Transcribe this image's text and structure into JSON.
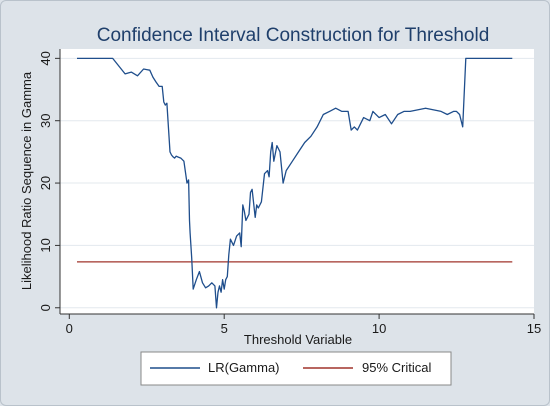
{
  "chart_data": {
    "type": "line",
    "title": "Confidence Interval Construction for Threshold",
    "xlabel": "Threshold Variable",
    "ylabel": "Likelihood Ratio Sequence in Gamma",
    "xlim": [
      -0.3,
      15
    ],
    "ylim": [
      -1,
      41.5
    ],
    "xticks": [
      0,
      5,
      10,
      15
    ],
    "yticks": [
      0,
      10,
      20,
      30,
      40
    ],
    "grid": "horizontal",
    "legend_position": "bottom",
    "colors": {
      "lr": "#1f4e8c",
      "critical": "#a1342b",
      "plot_bg": "#ffffff",
      "page_bg": "#dde3e9",
      "title": "#1f3f6b"
    },
    "series": [
      {
        "name": "LR(Gamma)",
        "x": [
          0.25,
          1.4,
          1.8,
          2.0,
          2.2,
          2.4,
          2.5,
          2.6,
          2.7,
          2.8,
          2.9,
          3.0,
          3.05,
          3.1,
          3.15,
          3.2,
          3.25,
          3.3,
          3.35,
          3.4,
          3.45,
          3.5,
          3.6,
          3.7,
          3.8,
          3.85,
          3.88,
          3.9,
          3.95,
          4.0,
          4.1,
          4.2,
          4.3,
          4.4,
          4.5,
          4.6,
          4.7,
          4.75,
          4.8,
          4.85,
          4.9,
          4.95,
          5.0,
          5.05,
          5.1,
          5.15,
          5.2,
          5.3,
          5.4,
          5.5,
          5.55,
          5.6,
          5.65,
          5.7,
          5.8,
          5.85,
          5.9,
          6.0,
          6.05,
          6.1,
          6.2,
          6.3,
          6.4,
          6.45,
          6.5,
          6.55,
          6.6,
          6.7,
          6.8,
          6.9,
          7.0,
          7.2,
          7.4,
          7.6,
          7.8,
          8.0,
          8.2,
          8.4,
          8.6,
          8.8,
          8.9,
          9.0,
          9.1,
          9.2,
          9.3,
          9.5,
          9.7,
          9.8,
          10.0,
          10.2,
          10.4,
          10.6,
          10.8,
          11.0,
          11.5,
          12.0,
          12.2,
          12.4,
          12.5,
          12.6,
          12.7,
          12.8,
          13.0,
          14.3
        ],
        "y": [
          40,
          40,
          37.5,
          37.8,
          37.2,
          38.3,
          38.2,
          38.1,
          37.0,
          36.2,
          35.5,
          35.5,
          33.0,
          32.5,
          32.8,
          29.0,
          25.0,
          24.5,
          24.2,
          24.0,
          24.3,
          24.2,
          24.0,
          23.5,
          20.0,
          20.5,
          14.0,
          12.0,
          8.0,
          3.0,
          4.5,
          5.8,
          4.0,
          3.2,
          3.5,
          4.0,
          3.5,
          0.0,
          2.5,
          3.5,
          2.5,
          4.5,
          3.0,
          4.5,
          5.0,
          8.5,
          11.0,
          10.0,
          11.5,
          12.0,
          9.8,
          16.5,
          15.5,
          14.0,
          15.0,
          18.5,
          19.0,
          14.5,
          16.5,
          16.0,
          17.0,
          21.5,
          22.0,
          21.0,
          25.0,
          26.5,
          23.5,
          26.0,
          25.0,
          20.0,
          22.0,
          23.5,
          25.0,
          26.5,
          27.5,
          29.0,
          31.0,
          31.5,
          32.0,
          31.5,
          31.5,
          31.5,
          28.5,
          29.0,
          28.5,
          30.5,
          30.0,
          31.5,
          30.5,
          31.0,
          29.5,
          31.0,
          31.5,
          31.5,
          32.0,
          31.5,
          31.0,
          31.5,
          31.5,
          31.0,
          29.0,
          40.0,
          40.0,
          40.0
        ]
      },
      {
        "name": "95% Critical",
        "x": [
          0.25,
          14.3
        ],
        "y": [
          7.35,
          7.35
        ]
      }
    ]
  }
}
